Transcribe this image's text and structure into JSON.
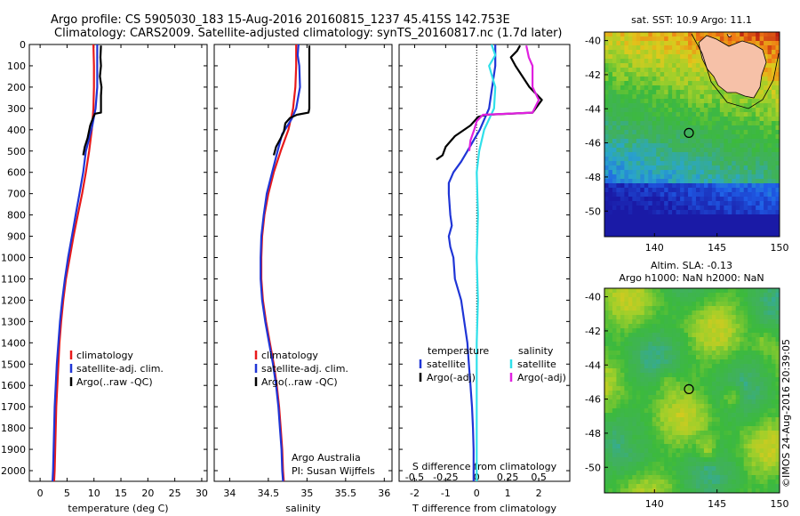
{
  "header": {
    "line1": "Argo profile: CS 5905030_183 15-Aug-2016 20160815_1237 45.415S 142.753E",
    "line2": "Climatology: CARS2009. Satellite-adjusted climatology: synTS_20160817.nc (1.7d later)"
  },
  "footer": {
    "stamp": "©IMOS 24-Aug-2016 20:39:05"
  },
  "colors": {
    "climatology": "#e8191a",
    "satellite": "#1f35d6",
    "argo": "#000000",
    "salinity_satellite": "#2fe0ea",
    "salinity_argo": "#e020e0"
  },
  "chart_data": [
    {
      "type": "line",
      "id": "temperature",
      "xlabel": "temperature (deg C)",
      "ylabel": "",
      "xlim": [
        -2,
        31
      ],
      "ylim": [
        2050,
        0
      ],
      "xticks": [
        0,
        5,
        10,
        15,
        20,
        25,
        30
      ],
      "yticks": [
        0,
        100,
        200,
        300,
        400,
        500,
        600,
        700,
        800,
        900,
        1000,
        1100,
        1200,
        1300,
        1400,
        1500,
        1600,
        1700,
        1800,
        1900,
        2000
      ],
      "legend": [
        "climatology",
        "satellite-adj. clim.",
        "Argo(..raw -QC)"
      ],
      "series": [
        {
          "name": "climatology",
          "color": "#e8191a",
          "points": [
            [
              9.9,
              0
            ],
            [
              10.0,
              100
            ],
            [
              10.0,
              200
            ],
            [
              9.9,
              300
            ],
            [
              9.6,
              400
            ],
            [
              9.1,
              500
            ],
            [
              8.5,
              600
            ],
            [
              7.8,
              700
            ],
            [
              7.0,
              800
            ],
            [
              6.2,
              900
            ],
            [
              5.5,
              1000
            ],
            [
              4.8,
              1100
            ],
            [
              4.3,
              1200
            ],
            [
              3.9,
              1300
            ],
            [
              3.6,
              1400
            ],
            [
              3.4,
              1500
            ],
            [
              3.2,
              1600
            ],
            [
              3.0,
              1700
            ],
            [
              2.9,
              1800
            ],
            [
              2.8,
              1900
            ],
            [
              2.7,
              2000
            ],
            [
              2.6,
              2050
            ]
          ]
        },
        {
          "name": "satellite-adj. clim.",
          "color": "#1f35d6",
          "points": [
            [
              10.6,
              0
            ],
            [
              10.6,
              100
            ],
            [
              10.6,
              200
            ],
            [
              10.3,
              300
            ],
            [
              9.7,
              380
            ],
            [
              9.0,
              450
            ],
            [
              8.5,
              500
            ],
            [
              8.0,
              600
            ],
            [
              7.3,
              700
            ],
            [
              6.6,
              800
            ],
            [
              5.9,
              900
            ],
            [
              5.2,
              1000
            ],
            [
              4.6,
              1100
            ],
            [
              4.1,
              1200
            ],
            [
              3.7,
              1300
            ],
            [
              3.4,
              1400
            ],
            [
              3.1,
              1500
            ],
            [
              2.9,
              1600
            ],
            [
              2.7,
              1700
            ],
            [
              2.6,
              1800
            ],
            [
              2.5,
              1900
            ],
            [
              2.4,
              2000
            ],
            [
              2.3,
              2050
            ]
          ]
        },
        {
          "name": "Argo(..raw -QC)",
          "color": "#000000",
          "points": [
            [
              11.3,
              5
            ],
            [
              11.2,
              60
            ],
            [
              11.3,
              100
            ],
            [
              11.1,
              150
            ],
            [
              11.4,
              200
            ],
            [
              11.3,
              240
            ],
            [
              11.3,
              320
            ],
            [
              10.2,
              325
            ],
            [
              9.9,
              340
            ],
            [
              9.3,
              380
            ],
            [
              8.8,
              440
            ],
            [
              8.3,
              480
            ],
            [
              8.0,
              520
            ]
          ]
        }
      ]
    },
    {
      "type": "line",
      "id": "salinity",
      "xlabel": "salinity",
      "ylabel": "",
      "xlim": [
        33.8,
        36.1
      ],
      "ylim": [
        2050,
        0
      ],
      "xticks": [
        34,
        34.5,
        35,
        35.5,
        36
      ],
      "xticklabels": [
        "34",
        "34.5",
        "35",
        "35.5",
        "36"
      ],
      "legend": [
        "climatology",
        "satellite-adj. clim.",
        "Argo(..raw -QC)"
      ],
      "annotations": [
        "Argo Australia",
        "PI: Susan Wijffels"
      ],
      "series": [
        {
          "name": "climatology",
          "color": "#e8191a",
          "points": [
            [
              34.86,
              0
            ],
            [
              34.86,
              100
            ],
            [
              34.85,
              200
            ],
            [
              34.82,
              300
            ],
            [
              34.76,
              400
            ],
            [
              34.66,
              500
            ],
            [
              34.57,
              600
            ],
            [
              34.5,
              700
            ],
            [
              34.45,
              800
            ],
            [
              34.42,
              900
            ],
            [
              34.41,
              1000
            ],
            [
              34.41,
              1100
            ],
            [
              34.43,
              1200
            ],
            [
              34.47,
              1300
            ],
            [
              34.52,
              1400
            ],
            [
              34.57,
              1500
            ],
            [
              34.61,
              1600
            ],
            [
              34.64,
              1700
            ],
            [
              34.66,
              1800
            ],
            [
              34.68,
              1900
            ],
            [
              34.69,
              2000
            ],
            [
              34.7,
              2050
            ]
          ]
        },
        {
          "name": "satellite-adj. clim.",
          "color": "#1f35d6",
          "points": [
            [
              34.89,
              0
            ],
            [
              34.88,
              50
            ],
            [
              34.9,
              100
            ],
            [
              34.91,
              200
            ],
            [
              34.88,
              260
            ],
            [
              34.86,
              300
            ],
            [
              34.8,
              350
            ],
            [
              34.75,
              380
            ],
            [
              34.68,
              420
            ],
            [
              34.62,
              500
            ],
            [
              34.55,
              600
            ],
            [
              34.48,
              700
            ],
            [
              34.44,
              800
            ],
            [
              34.41,
              900
            ],
            [
              34.4,
              1000
            ],
            [
              34.4,
              1100
            ],
            [
              34.42,
              1200
            ],
            [
              34.46,
              1300
            ],
            [
              34.51,
              1400
            ],
            [
              34.56,
              1500
            ],
            [
              34.6,
              1600
            ],
            [
              34.63,
              1700
            ],
            [
              34.65,
              1800
            ],
            [
              34.67,
              1900
            ],
            [
              34.68,
              2000
            ],
            [
              34.69,
              2050
            ]
          ]
        },
        {
          "name": "Argo(..raw -QC)",
          "color": "#000000",
          "points": [
            [
              35.03,
              5
            ],
            [
              35.03,
              100
            ],
            [
              35.03,
              200
            ],
            [
              35.03,
              300
            ],
            [
              35.02,
              320
            ],
            [
              34.87,
              330
            ],
            [
              34.78,
              345
            ],
            [
              34.72,
              370
            ],
            [
              34.7,
              410
            ],
            [
              34.66,
              440
            ],
            [
              34.6,
              480
            ],
            [
              34.57,
              520
            ]
          ]
        }
      ]
    },
    {
      "type": "line",
      "id": "difference",
      "xlabel": "T difference from climatology",
      "x2label": "S difference from climatology",
      "ylabel": "",
      "xlim": [
        -2.5,
        3
      ],
      "ylim": [
        2050,
        0
      ],
      "xticks": [
        -2,
        -1,
        0,
        1,
        2
      ],
      "x2ticks": [
        -0.5,
        -0.25,
        0,
        0.25,
        0.5
      ],
      "x2lim": [
        -0.625,
        0.75
      ],
      "legend_headers": [
        "temperature",
        "salinity"
      ],
      "legend": [
        "satellite",
        "Argo(-adj)",
        "satellite",
        "Argo(-adj)"
      ],
      "series": [
        {
          "name": "satellite",
          "group": "temperature",
          "color": "#1f35d6",
          "axis": "T",
          "points": [
            [
              0.6,
              0
            ],
            [
              0.6,
              50
            ],
            [
              0.6,
              100
            ],
            [
              0.5,
              200
            ],
            [
              0.4,
              300
            ],
            [
              0.1,
              400
            ],
            [
              -0.3,
              500
            ],
            [
              -0.5,
              550
            ],
            [
              -0.75,
              600
            ],
            [
              -0.9,
              650
            ],
            [
              -0.9,
              700
            ],
            [
              -0.85,
              800
            ],
            [
              -0.8,
              850
            ],
            [
              -0.9,
              900
            ],
            [
              -0.85,
              950
            ],
            [
              -0.75,
              1000
            ],
            [
              -0.7,
              1100
            ],
            [
              -0.5,
              1200
            ],
            [
              -0.4,
              1300
            ],
            [
              -0.3,
              1400
            ],
            [
              -0.25,
              1500
            ],
            [
              -0.2,
              1600
            ],
            [
              -0.15,
              1700
            ],
            [
              -0.12,
              1800
            ],
            [
              -0.1,
              1900
            ],
            [
              -0.1,
              2000
            ],
            [
              -0.1,
              2050
            ]
          ]
        },
        {
          "name": "Argo(-adj)",
          "group": "temperature",
          "color": "#000000",
          "axis": "T",
          "points": [
            [
              1.4,
              5
            ],
            [
              1.3,
              30
            ],
            [
              1.1,
              60
            ],
            [
              1.25,
              100
            ],
            [
              1.7,
              200
            ],
            [
              2.1,
              260
            ],
            [
              1.8,
              320
            ],
            [
              0.3,
              330
            ],
            [
              0.05,
              340
            ],
            [
              -0.2,
              380
            ],
            [
              -0.7,
              430
            ],
            [
              -1.0,
              480
            ],
            [
              -1.1,
              520
            ],
            [
              -1.3,
              540
            ]
          ]
        },
        {
          "name": "satellite",
          "group": "salinity",
          "color": "#2fe0ea",
          "axis": "S",
          "points": [
            [
              0.12,
              0
            ],
            [
              0.15,
              50
            ],
            [
              0.1,
              100
            ],
            [
              0.15,
              200
            ],
            [
              0.14,
              300
            ],
            [
              0.06,
              400
            ],
            [
              0.02,
              500
            ],
            [
              0.0,
              600
            ],
            [
              0.01,
              800
            ],
            [
              0.0,
              1000
            ],
            [
              0.01,
              1200
            ],
            [
              0.0,
              1400
            ],
            [
              0.0,
              1600
            ],
            [
              0.0,
              1800
            ],
            [
              0.0,
              2000
            ],
            [
              0.0,
              2050
            ]
          ]
        },
        {
          "name": "Argo(-adj)",
          "group": "salinity",
          "color": "#e020e0",
          "axis": "S",
          "points": [
            [
              0.4,
              5
            ],
            [
              0.42,
              60
            ],
            [
              0.45,
              100
            ],
            [
              0.45,
              200
            ],
            [
              0.5,
              260
            ],
            [
              0.45,
              320
            ],
            [
              0.05,
              330
            ],
            [
              0.0,
              360
            ],
            [
              -0.02,
              400
            ],
            [
              -0.05,
              450
            ],
            [
              -0.06,
              500
            ]
          ]
        }
      ]
    },
    {
      "type": "heatmap",
      "id": "sst-map",
      "title": "sat. SST: 10.9 Argo: 11.1",
      "xlim": [
        136,
        150
      ],
      "ylim": [
        -51.5,
        -39.5
      ],
      "xticks": [
        140,
        145,
        150
      ],
      "yticks": [
        -40,
        -42,
        -44,
        -46,
        -48,
        -50
      ],
      "marker": [
        142.753,
        -45.415
      ]
    },
    {
      "type": "heatmap",
      "id": "sla-map",
      "title_line1": "Altim. SLA: -0.13",
      "title_line2": "Argo h1000: NaN h2000: NaN",
      "xlim": [
        136,
        150
      ],
      "ylim": [
        -51.5,
        -39.5
      ],
      "xticks": [
        140,
        145,
        150
      ],
      "yticks": [
        -40,
        -42,
        -44,
        -46,
        -48,
        -50
      ],
      "marker": [
        142.753,
        -45.415
      ]
    }
  ]
}
